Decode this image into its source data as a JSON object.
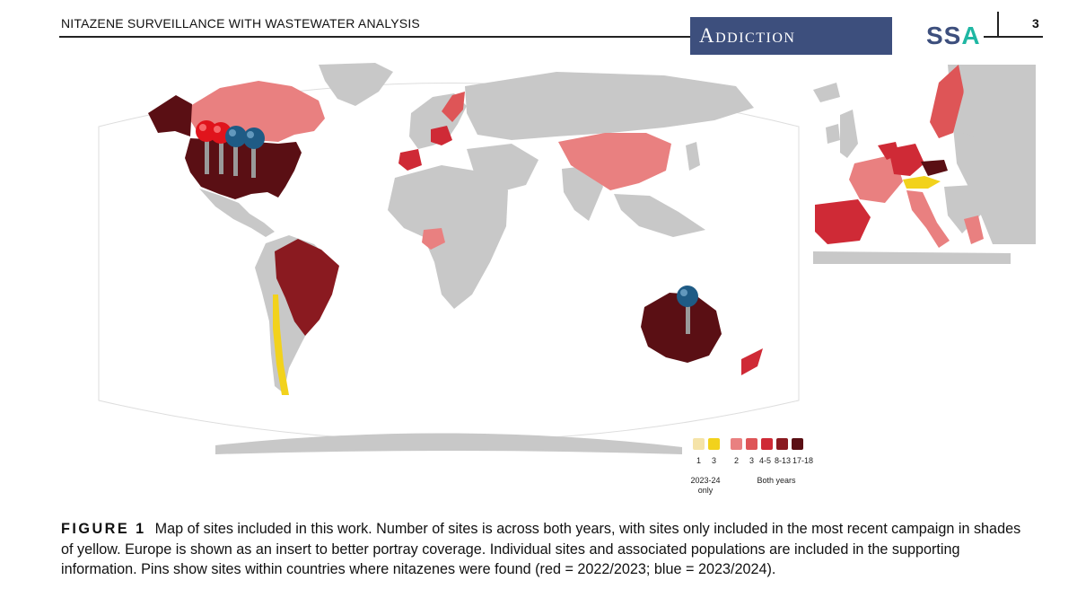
{
  "header": {
    "running_title": "NITAZENE SURVEILLANCE WITH WASTEWATER ANALYSIS",
    "journal_name": "Addiction",
    "journal_logo_main": "SS",
    "journal_logo_accent": "A",
    "page_number": "3"
  },
  "figure": {
    "label": "FIGURE 1",
    "caption": "Map of sites included in this work. Number of sites is across both years, with sites only included in the most recent campaign in shades of yellow. Europe is shown as an insert to better portray coverage. Individual sites and associated populations are included in the supporting information. Pins show sites within countries where nitazenes were found (red = 2022/2023; blue = 2023/2024)."
  },
  "legend": {
    "items": [
      {
        "label": "1",
        "color": "#f5e3a8"
      },
      {
        "label": "3",
        "color": "#f2d21c"
      },
      {
        "label": "2",
        "color": "#e98080"
      },
      {
        "label": "3",
        "color": "#de5557"
      },
      {
        "label": "4-5",
        "color": "#cf2a36"
      },
      {
        "label": "8-13",
        "color": "#8a1a20"
      },
      {
        "label": "17-18",
        "color": "#5a0f14"
      }
    ],
    "group_recent_line1": "2023-24",
    "group_recent_line2": "only",
    "group_both": "Both years"
  },
  "colors": {
    "land": "#c8c8c8",
    "pin_red": "#e0141c",
    "pin_blue": "#1f5b85"
  },
  "pins": [
    {
      "country": "USA",
      "color": "red"
    },
    {
      "country": "USA",
      "color": "red"
    },
    {
      "country": "USA",
      "color": "blue"
    },
    {
      "country": "USA",
      "color": "blue"
    },
    {
      "country": "Australia",
      "color": "blue"
    }
  ]
}
